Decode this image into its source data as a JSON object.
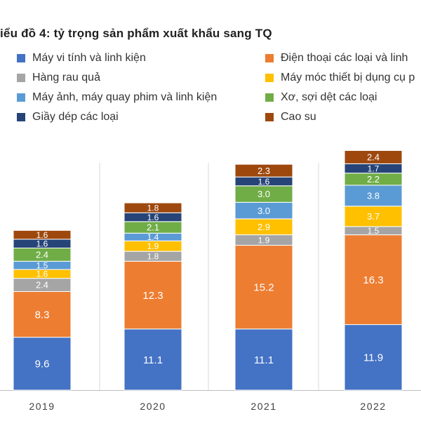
{
  "chart_data": {
    "type": "bar",
    "stacked": true,
    "title": "iểu đồ 4:  tỷ trọng sản phẩm xuất khẩu sang TQ",
    "legend_position": "top",
    "grid": false,
    "categories": [
      "2019",
      "2020",
      "2021",
      "2022"
    ],
    "series": [
      {
        "name": "Máy vi tính và linh kiện",
        "color": "#4472c4",
        "values": [
          9.6,
          11.1,
          11.1,
          11.9
        ]
      },
      {
        "name": "Điện thoại các loại và linh",
        "color": "#ed7d31",
        "values": [
          8.3,
          12.3,
          15.2,
          16.3
        ]
      },
      {
        "name": "Hàng rau quả",
        "color": "#a5a5a5",
        "values": [
          2.4,
          1.8,
          1.9,
          1.5
        ]
      },
      {
        "name": "Máy móc thiết bị dụng cụ p",
        "color": "#ffc000",
        "values": [
          1.6,
          1.9,
          2.9,
          3.7
        ]
      },
      {
        "name": "Máy ảnh, máy quay phim và linh kiện",
        "color": "#5b9bd5",
        "values": [
          1.5,
          1.4,
          3.0,
          3.8
        ]
      },
      {
        "name": "Xơ, sợi dệt các loại",
        "color": "#70ad47",
        "values": [
          2.4,
          2.1,
          3.0,
          2.2
        ]
      },
      {
        "name": "Giầy dép các loại",
        "color": "#264478",
        "values": [
          1.6,
          1.6,
          1.6,
          1.7
        ]
      },
      {
        "name": "Cao su",
        "color": "#9e480e",
        "values": [
          1.6,
          1.8,
          2.3,
          2.4
        ]
      }
    ]
  }
}
